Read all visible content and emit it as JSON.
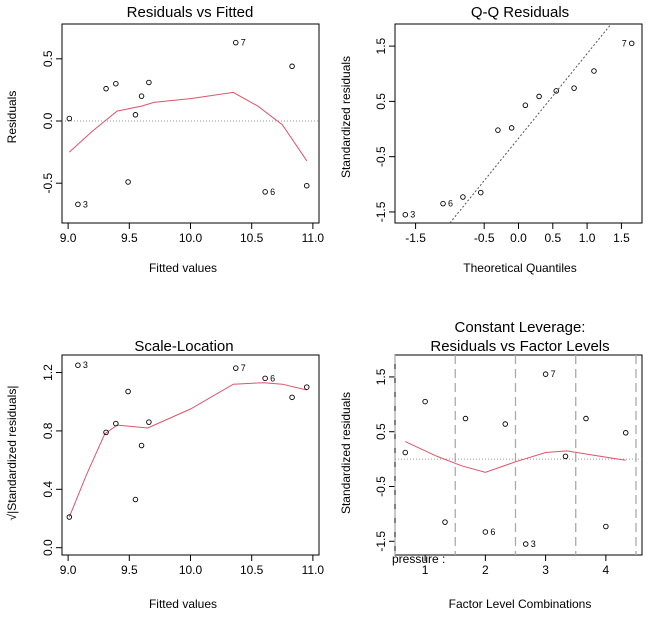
{
  "chart_data": [
    {
      "type": "scatter",
      "title": "Residuals vs Fitted",
      "xlabel": "Fitted values",
      "ylabel": "Residuals",
      "xlim": [
        8.95,
        11.05
      ],
      "ylim": [
        -0.82,
        0.78
      ],
      "x_ticks": [
        {
          "v": 9.0,
          "t": "9.0"
        },
        {
          "v": 9.5,
          "t": "9.5"
        },
        {
          "v": 10.0,
          "t": "10.0"
        },
        {
          "v": 10.5,
          "t": "10.5"
        },
        {
          "v": 11.0,
          "t": "11.0"
        }
      ],
      "y_ticks": [
        {
          "v": -0.5,
          "t": "-0.5"
        },
        {
          "v": 0.0,
          "t": "0.0"
        },
        {
          "v": 0.5,
          "t": "0.5"
        }
      ],
      "points": [
        {
          "x": 9.01,
          "y": 0.02
        },
        {
          "x": 9.08,
          "y": -0.67,
          "label": "3"
        },
        {
          "x": 9.31,
          "y": 0.26
        },
        {
          "x": 9.39,
          "y": 0.3
        },
        {
          "x": 9.49,
          "y": -0.49
        },
        {
          "x": 9.55,
          "y": 0.05
        },
        {
          "x": 9.6,
          "y": 0.2
        },
        {
          "x": 9.66,
          "y": 0.31
        },
        {
          "x": 10.37,
          "y": 0.63,
          "label": "7"
        },
        {
          "x": 10.61,
          "y": -0.57,
          "label": "6"
        },
        {
          "x": 10.83,
          "y": 0.44
        },
        {
          "x": 10.95,
          "y": -0.52
        }
      ],
      "smooth": [
        {
          "x": 9.01,
          "y": -0.25
        },
        {
          "x": 9.2,
          "y": -0.08
        },
        {
          "x": 9.4,
          "y": 0.08
        },
        {
          "x": 9.6,
          "y": 0.12
        },
        {
          "x": 9.7,
          "y": 0.15
        },
        {
          "x": 10.0,
          "y": 0.18
        },
        {
          "x": 10.35,
          "y": 0.23
        },
        {
          "x": 10.55,
          "y": 0.12
        },
        {
          "x": 10.75,
          "y": -0.03
        },
        {
          "x": 10.95,
          "y": -0.32
        }
      ],
      "ref_y": 0
    },
    {
      "type": "scatter",
      "title": "Q-Q Residuals",
      "xlabel": "Theoretical Quantiles",
      "ylabel": "Standardized residuals",
      "xlim": [
        -1.8,
        1.8
      ],
      "ylim": [
        -1.7,
        1.9
      ],
      "x_ticks": [
        {
          "v": -1.5,
          "t": "-1.5"
        },
        {
          "v": -0.5,
          "t": "-0.5"
        },
        {
          "v": 0.0,
          "t": "0.0"
        },
        {
          "v": 0.5,
          "t": "0.5"
        },
        {
          "v": 1.0,
          "t": "1.0"
        },
        {
          "v": 1.5,
          "t": "1.5"
        }
      ],
      "y_ticks": [
        {
          "v": -1.5,
          "t": "-1.5"
        },
        {
          "v": -0.5,
          "t": "-0.5"
        },
        {
          "v": 0.5,
          "t": "0.5"
        },
        {
          "v": 1.5,
          "t": "1.5"
        }
      ],
      "points": [
        {
          "x": -1.65,
          "y": -1.55,
          "label": "3"
        },
        {
          "x": -1.1,
          "y": -1.35,
          "label": "6"
        },
        {
          "x": -0.81,
          "y": -1.23
        },
        {
          "x": -0.55,
          "y": -1.15
        },
        {
          "x": -0.3,
          "y": -0.02
        },
        {
          "x": -0.1,
          "y": 0.02
        },
        {
          "x": 0.1,
          "y": 0.43
        },
        {
          "x": 0.3,
          "y": 0.59
        },
        {
          "x": 0.55,
          "y": 0.69
        },
        {
          "x": 0.81,
          "y": 0.74
        },
        {
          "x": 1.1,
          "y": 1.05
        },
        {
          "x": 1.65,
          "y": 1.55,
          "label": "7"
        }
      ],
      "ref_line": [
        {
          "x": -1.0,
          "y": -1.7
        },
        {
          "x": 1.35,
          "y": 1.9
        }
      ]
    },
    {
      "type": "scatter",
      "title": "Scale-Location",
      "xlabel": "Fitted values",
      "ylabel": "√|Standardized residuals|",
      "xlim": [
        8.95,
        11.05
      ],
      "ylim": [
        -0.05,
        1.32
      ],
      "x_ticks": [
        {
          "v": 9.0,
          "t": "9.0"
        },
        {
          "v": 9.5,
          "t": "9.5"
        },
        {
          "v": 10.0,
          "t": "10.0"
        },
        {
          "v": 10.5,
          "t": "10.5"
        },
        {
          "v": 11.0,
          "t": "11.0"
        }
      ],
      "y_ticks": [
        {
          "v": 0.0,
          "t": "0.0"
        },
        {
          "v": 0.4,
          "t": "0.4"
        },
        {
          "v": 0.8,
          "t": "0.8"
        },
        {
          "v": 1.2,
          "t": "1.2"
        }
      ],
      "points": [
        {
          "x": 9.01,
          "y": 0.21
        },
        {
          "x": 9.08,
          "y": 1.25,
          "label": "3"
        },
        {
          "x": 9.31,
          "y": 0.79
        },
        {
          "x": 9.39,
          "y": 0.85
        },
        {
          "x": 9.49,
          "y": 1.07
        },
        {
          "x": 9.55,
          "y": 0.33
        },
        {
          "x": 9.6,
          "y": 0.7
        },
        {
          "x": 9.66,
          "y": 0.86
        },
        {
          "x": 10.37,
          "y": 1.23,
          "label": "7"
        },
        {
          "x": 10.61,
          "y": 1.16,
          "label": "6"
        },
        {
          "x": 10.83,
          "y": 1.03
        },
        {
          "x": 10.95,
          "y": 1.1
        }
      ],
      "smooth": [
        {
          "x": 9.01,
          "y": 0.21
        },
        {
          "x": 9.15,
          "y": 0.5
        },
        {
          "x": 9.3,
          "y": 0.78
        },
        {
          "x": 9.4,
          "y": 0.84
        },
        {
          "x": 9.65,
          "y": 0.82
        },
        {
          "x": 10.0,
          "y": 0.95
        },
        {
          "x": 10.35,
          "y": 1.12
        },
        {
          "x": 10.6,
          "y": 1.13
        },
        {
          "x": 10.75,
          "y": 1.12
        },
        {
          "x": 10.95,
          "y": 1.08
        }
      ]
    },
    {
      "type": "scatter",
      "title": "Constant Leverage:",
      "subtitle": "Residuals vs Factor Levels",
      "xlabel": "Factor Level Combinations",
      "ylabel": "Standardized residuals",
      "factor_label": "pressure :",
      "xlim": [
        0.5,
        4.6
      ],
      "ylim": [
        -1.75,
        1.9
      ],
      "x_ticks": [
        {
          "v": 1,
          "t": "1"
        },
        {
          "v": 2,
          "t": "2"
        },
        {
          "v": 3,
          "t": "3"
        },
        {
          "v": 4,
          "t": "4"
        }
      ],
      "y_ticks": [
        {
          "v": -1.5,
          "t": "-1.5"
        },
        {
          "v": -0.5,
          "t": "-0.5"
        },
        {
          "v": 0.5,
          "t": "0.5"
        },
        {
          "v": 1.5,
          "t": "1.5"
        }
      ],
      "points": [
        {
          "x": 0.67,
          "y": 0.12
        },
        {
          "x": 1.0,
          "y": 1.05
        },
        {
          "x": 1.33,
          "y": -1.15
        },
        {
          "x": 1.67,
          "y": 0.74
        },
        {
          "x": 2.0,
          "y": -1.33,
          "label": "6"
        },
        {
          "x": 2.33,
          "y": 0.64
        },
        {
          "x": 2.67,
          "y": -1.55,
          "label": "3"
        },
        {
          "x": 3.0,
          "y": 1.55,
          "label": "7"
        },
        {
          "x": 3.33,
          "y": 0.05
        },
        {
          "x": 3.67,
          "y": 0.74
        },
        {
          "x": 4.0,
          "y": -1.23
        },
        {
          "x": 4.33,
          "y": 0.48
        }
      ],
      "smooth": [
        {
          "x": 0.67,
          "y": 0.32
        },
        {
          "x": 1.2,
          "y": 0.05
        },
        {
          "x": 1.6,
          "y": -0.12
        },
        {
          "x": 2.0,
          "y": -0.24
        },
        {
          "x": 2.5,
          "y": -0.05
        },
        {
          "x": 3.0,
          "y": 0.12
        },
        {
          "x": 3.35,
          "y": 0.15
        },
        {
          "x": 3.8,
          "y": 0.07
        },
        {
          "x": 4.33,
          "y": -0.02
        }
      ],
      "ref_y": 0,
      "separators": [
        0.5,
        1.5,
        2.5,
        3.5,
        4.5
      ]
    }
  ]
}
